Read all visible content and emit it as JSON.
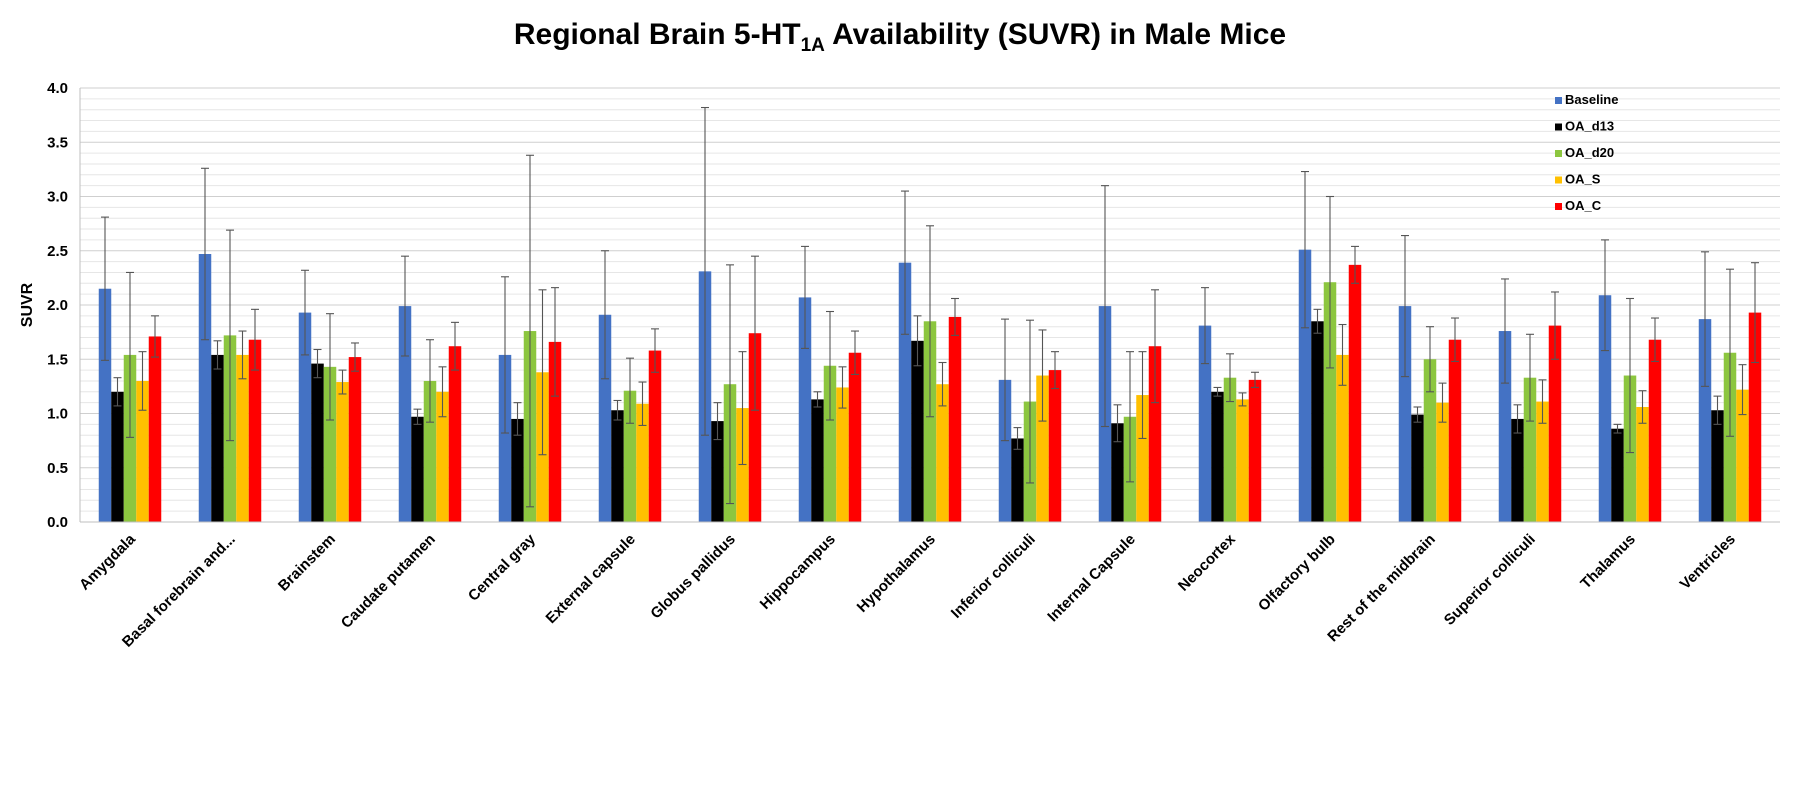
{
  "chart_data": {
    "type": "bar",
    "title": {
      "main": "Regional Brain 5-HT",
      "subscript": "1A",
      "rest": " Availability (SUVR) in Male Mice"
    },
    "xlabel": "",
    "ylabel": "SUVR",
    "ylim": [
      0,
      4.0
    ],
    "yticks": [
      "0.0",
      "0.5",
      "1.0",
      "1.5",
      "2.0",
      "2.5",
      "3.0",
      "3.5",
      "4.0"
    ],
    "ytick_values": [
      0,
      0.5,
      1.0,
      1.5,
      2.0,
      2.5,
      3.0,
      3.5,
      4.0
    ],
    "grid": true,
    "legend_position": "top-right",
    "categories": [
      "Amygdala",
      "Basal forebrain and...",
      "Brainstem",
      "Caudate putamen",
      "Central gray",
      "External capsule",
      "Globus pallidus",
      "Hippocampus",
      "Hypothalamus",
      "Inferior colliculi",
      "Internal Capsule",
      "Neocortex",
      "Olfactory bulb",
      "Rest of the midbrain",
      "Superior colliculi",
      "Thalamus",
      "Ventricles"
    ],
    "series": [
      {
        "name": "Baseline",
        "color": "#4472c4",
        "values": [
          2.15,
          2.47,
          1.93,
          1.99,
          1.54,
          1.91,
          2.31,
          2.07,
          2.39,
          1.31,
          1.99,
          1.81,
          2.51,
          1.99,
          1.76,
          2.09,
          1.87
        ],
        "errors": [
          0.66,
          0.79,
          0.39,
          0.46,
          0.72,
          0.59,
          1.51,
          0.47,
          0.66,
          0.56,
          1.11,
          0.35,
          0.72,
          0.65,
          0.48,
          0.51,
          0.62
        ]
      },
      {
        "name": "OA_d13",
        "color": "#000000",
        "values": [
          1.2,
          1.54,
          1.46,
          0.97,
          0.95,
          1.03,
          0.93,
          1.13,
          1.67,
          0.77,
          0.91,
          1.2,
          1.85,
          0.99,
          0.95,
          0.86,
          1.03
        ],
        "errors": [
          0.13,
          0.13,
          0.13,
          0.07,
          0.15,
          0.09,
          0.17,
          0.07,
          0.23,
          0.1,
          0.17,
          0.04,
          0.11,
          0.07,
          0.13,
          0.04,
          0.13
        ]
      },
      {
        "name": "OA_d20",
        "color": "#8cc63f",
        "values": [
          1.54,
          1.72,
          1.43,
          1.3,
          1.76,
          1.21,
          1.27,
          1.44,
          1.85,
          1.11,
          0.97,
          1.33,
          2.21,
          1.5,
          1.33,
          1.35,
          1.56
        ],
        "errors": [
          0.76,
          0.97,
          0.49,
          0.38,
          1.62,
          0.3,
          1.1,
          0.5,
          0.88,
          0.75,
          0.6,
          0.22,
          0.79,
          0.3,
          0.4,
          0.71,
          0.77
        ]
      },
      {
        "name": "OA_S",
        "color": "#ffc000",
        "values": [
          1.3,
          1.54,
          1.29,
          1.2,
          1.38,
          1.09,
          1.05,
          1.24,
          1.27,
          1.35,
          1.17,
          1.13,
          1.54,
          1.1,
          1.11,
          1.06,
          1.22
        ],
        "errors": [
          0.27,
          0.22,
          0.11,
          0.23,
          0.76,
          0.2,
          0.52,
          0.19,
          0.2,
          0.42,
          0.4,
          0.06,
          0.28,
          0.18,
          0.2,
          0.15,
          0.23
        ]
      },
      {
        "name": "OA_C",
        "color": "#ff0000",
        "values": [
          1.71,
          1.68,
          1.52,
          1.62,
          1.66,
          1.58,
          1.74,
          1.56,
          1.89,
          1.4,
          1.62,
          1.31,
          2.37,
          1.68,
          1.81,
          1.68,
          1.93
        ],
        "errors": [
          0.19,
          0.28,
          0.13,
          0.22,
          0.5,
          0.2,
          0.71,
          0.2,
          0.17,
          0.17,
          0.52,
          0.07,
          0.17,
          0.2,
          0.31,
          0.2,
          0.46
        ]
      }
    ]
  }
}
